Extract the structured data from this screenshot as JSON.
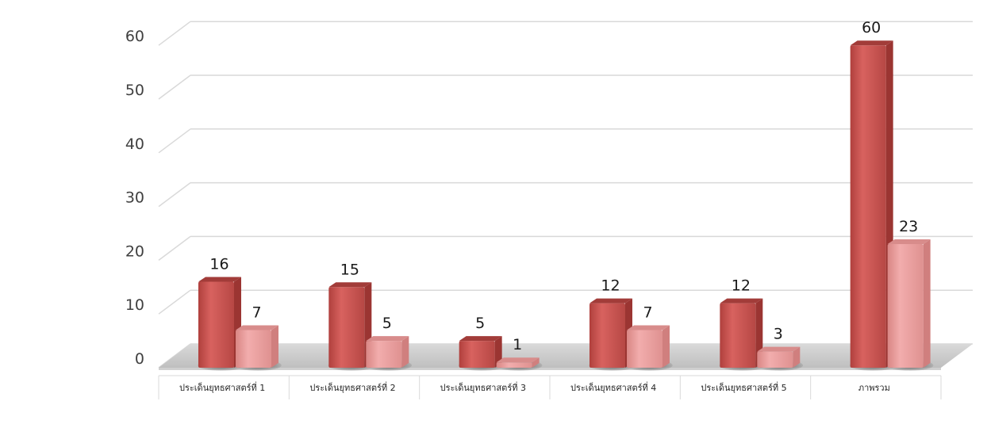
{
  "chart_data": {
    "type": "bar",
    "categories": [
      "ประเด็นยุทธศาสตร์ที่ 1",
      "ประเด็นยุทธศาสตร์ที่ 2",
      "ประเด็นยุทธศาสตร์ที่ 3",
      "ประเด็นยุทธศาสตร์ที่ 4",
      "ประเด็นยุทธศาสตร์ที่ 5",
      "ภาพรวม"
    ],
    "series": [
      {
        "values": [
          16,
          15,
          5,
          12,
          12,
          60
        ],
        "color": "#c0504d"
      },
      {
        "values": [
          7,
          5,
          1,
          7,
          3,
          23
        ],
        "color": "#e8999a"
      }
    ],
    "y_ticks": [
      "0",
      "10",
      "20",
      "30",
      "40",
      "50",
      "60"
    ],
    "ylim": [
      0,
      60
    ],
    "grid": true,
    "legend": "none",
    "title": "",
    "xlabel": "",
    "ylabel": ""
  }
}
